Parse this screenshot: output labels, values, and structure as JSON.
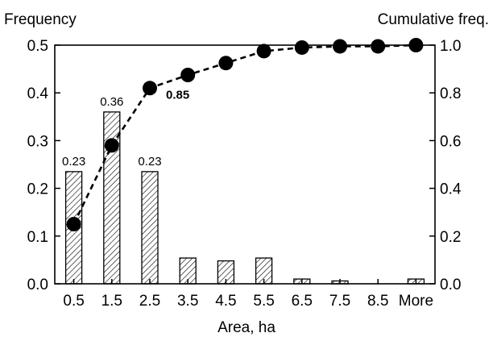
{
  "chart_data": {
    "type": "bar",
    "categories": [
      "0.5",
      "1.5",
      "2.5",
      "3.5",
      "4.5",
      "5.5",
      "6.5",
      "7.5",
      "8.5",
      "More"
    ],
    "xlabel": "Area, ha",
    "series": [
      {
        "type": "bar",
        "axis": "left",
        "values": [
          0.235,
          0.36,
          0.235,
          0.054,
          0.048,
          0.054,
          0.01,
          0.006,
          0.0,
          0.01
        ]
      },
      {
        "type": "line",
        "axis": "right",
        "values": [
          0.25,
          0.58,
          0.82,
          0.875,
          0.925,
          0.975,
          0.99,
          0.995,
          0.995,
          1.0
        ]
      }
    ],
    "y_left": {
      "label": "Frequency",
      "ylim": [
        0,
        0.5
      ],
      "ticks": [
        "0.0",
        "0.1",
        "0.2",
        "0.3",
        "0.4",
        "0.5"
      ]
    },
    "y_right": {
      "label": "Cumulative freq.",
      "ylim": [
        0,
        1.0
      ],
      "ticks": [
        "0.0",
        "0.2",
        "0.4",
        "0.6",
        "0.8",
        "1.0"
      ]
    },
    "bar_labels": [
      "0.23",
      "0.36",
      "0.23"
    ],
    "line_annotation": "0.85",
    "grid": false,
    "legend": "none"
  }
}
